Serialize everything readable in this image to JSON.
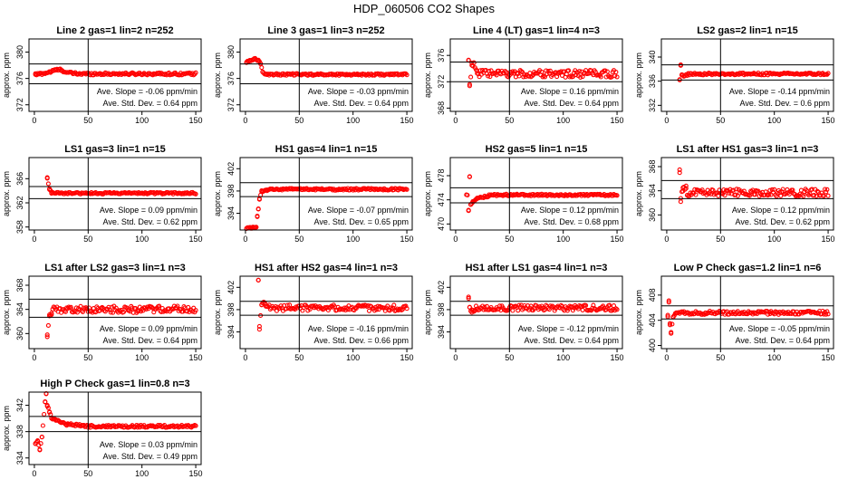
{
  "figure": {
    "title": "HDP_060506  CO2 Shapes"
  },
  "colors": {
    "points": "#ff0000",
    "axes": "#000000",
    "background": "#ffffff"
  },
  "chart_data": [
    {
      "type": "scatter",
      "title": "Line 2 gas=1 lin=2 n=252",
      "ylabel": "approx. ppm",
      "yticks": [
        372,
        376,
        380
      ],
      "ylim": [
        371,
        382
      ],
      "xticks": [
        0,
        50,
        100,
        150
      ],
      "xlim": [
        -5,
        155
      ],
      "vline": 50,
      "hlines": [
        375.2,
        378.2
      ],
      "slope_text": "Ave. Slope = -0.06  ppm/min",
      "std_text": "Ave. Std. Dev. = 0.64  ppm",
      "pattern": {
        "start": 1,
        "end": 150,
        "step": 1,
        "base": 376.7,
        "noise": 0.18,
        "early": [
          [
            1,
            376.6
          ],
          [
            5,
            376.7
          ],
          [
            10,
            376.8
          ],
          [
            15,
            377.0
          ],
          [
            20,
            377.3
          ],
          [
            25,
            377.3
          ],
          [
            30,
            376.9
          ],
          [
            40,
            376.7
          ]
        ]
      }
    },
    {
      "type": "scatter",
      "title": "Line 3 gas=1 lin=3 n=252",
      "ylabel": "approx. ppm",
      "yticks": [
        372,
        376,
        380
      ],
      "ylim": [
        371,
        382
      ],
      "xticks": [
        0,
        50,
        100,
        150
      ],
      "xlim": [
        -5,
        155
      ],
      "vline": 50,
      "hlines": [
        375.2,
        378.2
      ],
      "slope_text": "Ave. Slope = -0.03  ppm/min",
      "std_text": "Ave. Std. Dev. = 0.64  ppm",
      "pattern": {
        "start": 1,
        "end": 150,
        "step": 1,
        "base": 376.6,
        "noise": 0.15,
        "early": [
          [
            1,
            378.5
          ],
          [
            4,
            378.7
          ],
          [
            8,
            379.0
          ],
          [
            12,
            378.7
          ],
          [
            14,
            378.2
          ],
          [
            16,
            377.0
          ],
          [
            19,
            376.7
          ]
        ]
      }
    },
    {
      "type": "scatter",
      "title": "Line 4 (LT) gas=1 lin=4 n=3",
      "ylabel": "approx. ppm",
      "yticks": [
        368,
        372,
        376
      ],
      "ylim": [
        367.5,
        378.5
      ],
      "xticks": [
        0,
        50,
        100,
        150
      ],
      "xlim": [
        -5,
        155
      ],
      "vline": 50,
      "hlines": [
        372.0,
        375.0
      ],
      "slope_text": "Ave. Slope = 0.16  ppm/min",
      "std_text": "Ave. Std. Dev. = 0.64  ppm",
      "pattern": {
        "start": 12,
        "end": 150,
        "step": 1,
        "base": 373.2,
        "noise": 0.55,
        "early": [
          [
            12,
            375.3
          ],
          [
            13,
            371.6
          ],
          [
            15,
            374.5
          ],
          [
            17,
            374.9
          ],
          [
            20,
            373.6
          ]
        ]
      }
    },
    {
      "type": "scatter",
      "title": "LS2 gas=2 lin=1 n=15",
      "ylabel": "approx. ppm",
      "yticks": [
        332,
        336,
        340
      ],
      "ylim": [
        331,
        343
      ],
      "xticks": [
        0,
        50,
        100,
        150
      ],
      "xlim": [
        -5,
        155
      ],
      "vline": 50,
      "hlines": [
        336.2,
        338.7
      ],
      "slope_text": "Ave. Slope = -0.14  ppm/min",
      "std_text": "Ave. Std. Dev. = 0.6  ppm",
      "pattern": {
        "start": 12,
        "end": 150,
        "step": 1,
        "base": 337.2,
        "noise": 0.18,
        "early": [
          [
            12,
            336.2
          ],
          [
            13,
            338.6
          ],
          [
            14,
            337.0
          ],
          [
            16,
            336.8
          ],
          [
            20,
            337.2
          ]
        ]
      }
    },
    {
      "type": "scatter",
      "title": "LS1 gas=3 lin=1 n=15",
      "ylabel": "approx. ppm",
      "yticks": [
        358,
        362,
        366
      ],
      "ylim": [
        357.5,
        369.5
      ],
      "xticks": [
        0,
        50,
        100,
        150
      ],
      "xlim": [
        -5,
        155
      ],
      "vline": 50,
      "hlines": [
        362.7,
        364.7
      ],
      "slope_text": "Ave. Slope = 0.09  ppm/min",
      "std_text": "Ave. Std. Dev. = 0.62  ppm",
      "pattern": {
        "start": 12,
        "end": 150,
        "step": 1,
        "base": 363.6,
        "noise": 0.15,
        "early": [
          [
            12,
            366.2
          ],
          [
            14,
            364.2
          ],
          [
            16,
            363.7
          ],
          [
            20,
            363.6
          ]
        ]
      }
    },
    {
      "type": "scatter",
      "title": "HS1 gas=4 lin=1 n=15",
      "ylabel": "approx. ppm",
      "yticks": [
        394,
        398,
        402
      ],
      "ylim": [
        391,
        404
      ],
      "xticks": [
        0,
        50,
        100,
        150
      ],
      "xlim": [
        -5,
        155
      ],
      "vline": 50,
      "hlines": [
        397.0,
        399.5
      ],
      "slope_text": "Ave. Slope = -0.07  ppm/min",
      "std_text": "Ave. Std. Dev. = 0.65  ppm",
      "pattern": {
        "start": 1,
        "end": 150,
        "step": 1,
        "base": 398.3,
        "noise": 0.18,
        "early": [
          [
            1,
            391.3
          ],
          [
            5,
            391.3
          ],
          [
            8,
            391.4
          ],
          [
            10,
            391.5
          ],
          [
            11,
            393.5
          ],
          [
            12,
            394.8
          ],
          [
            13,
            396.5
          ],
          [
            15,
            397.9
          ],
          [
            20,
            398.2
          ]
        ]
      }
    },
    {
      "type": "scatter",
      "title": "HS2 gas=5 lin=1 n=15",
      "ylabel": "approx. ppm",
      "yticks": [
        470,
        474,
        478
      ],
      "ylim": [
        469,
        481
      ],
      "xticks": [
        0,
        50,
        100,
        150
      ],
      "xlim": [
        -5,
        155
      ],
      "vline": 50,
      "hlines": [
        473.5,
        476.0
      ],
      "slope_text": "Ave. Slope = 0.12  ppm/min",
      "std_text": "Ave. Std. Dev. = 0.68  ppm",
      "pattern": {
        "start": 10,
        "end": 150,
        "step": 1,
        "base": 474.8,
        "noise": 0.15,
        "early": [
          [
            12,
            472.3
          ],
          [
            13,
            477.8
          ],
          [
            14,
            473.2
          ],
          [
            16,
            473.6
          ],
          [
            20,
            474.3
          ],
          [
            30,
            474.6
          ]
        ]
      }
    },
    {
      "type": "scatter",
      "title": "LS1 after HS1 gas=3 lin=1 n=3",
      "ylabel": "approx. ppm",
      "yticks": [
        360,
        364,
        368
      ],
      "ylim": [
        357.5,
        369.5
      ],
      "xticks": [
        0,
        50,
        100,
        150
      ],
      "xlim": [
        -5,
        155
      ],
      "vline": 50,
      "hlines": [
        362.7,
        365.7
      ],
      "slope_text": "Ave. Slope = 0.12  ppm/min",
      "std_text": "Ave. Std. Dev. = 0.62  ppm",
      "pattern": {
        "start": 12,
        "end": 150,
        "step": 1,
        "base": 363.7,
        "noise": 0.6,
        "early": [
          [
            12,
            367.0
          ],
          [
            13,
            362.2
          ],
          [
            15,
            364.5
          ],
          [
            18,
            364.8
          ]
        ]
      }
    },
    {
      "type": "scatter",
      "title": "LS1 after LS2 gas=3 lin=1 n=3",
      "ylabel": "approx. ppm",
      "yticks": [
        360,
        364,
        368
      ],
      "ylim": [
        357.5,
        369.5
      ],
      "xticks": [
        0,
        50,
        100,
        150
      ],
      "xlim": [
        -5,
        155
      ],
      "vline": 50,
      "hlines": [
        362.7,
        365.7
      ],
      "slope_text": "Ave. Slope = 0.09  ppm/min",
      "std_text": "Ave. Std. Dev. = 0.64  ppm",
      "pattern": {
        "start": 12,
        "end": 150,
        "step": 1,
        "base": 364.0,
        "noise": 0.55,
        "early": [
          [
            12,
            359.8
          ],
          [
            14,
            362.9
          ],
          [
            16,
            363.4
          ]
        ]
      }
    },
    {
      "type": "scatter",
      "title": "HS1 after HS2 gas=4 lin=1 n=3",
      "ylabel": "approx. ppm",
      "yticks": [
        394,
        398,
        402
      ],
      "ylim": [
        391,
        404
      ],
      "xticks": [
        0,
        50,
        100,
        150
      ],
      "xlim": [
        -5,
        155
      ],
      "vline": 50,
      "hlines": [
        397.0,
        399.5
      ],
      "slope_text": "Ave. Slope = -0.16  ppm/min",
      "std_text": "Ave. Std. Dev. = 0.66  ppm",
      "pattern": {
        "start": 12,
        "end": 150,
        "step": 1,
        "base": 398.3,
        "noise": 0.55,
        "early": [
          [
            12,
            403.3
          ],
          [
            13,
            395.0
          ],
          [
            15,
            398.9
          ],
          [
            18,
            399.1
          ]
        ]
      }
    },
    {
      "type": "scatter",
      "title": "HS1 after LS1 gas=4 lin=1 n=3",
      "ylabel": "approx. ppm",
      "yticks": [
        394,
        398,
        402
      ],
      "ylim": [
        391,
        404
      ],
      "xticks": [
        0,
        50,
        100,
        150
      ],
      "xlim": [
        -5,
        155
      ],
      "vline": 50,
      "hlines": [
        397.0,
        399.5
      ],
      "slope_text": "Ave. Slope = -0.12  ppm/min",
      "std_text": "Ave. Std. Dev. = 0.64  ppm",
      "pattern": {
        "start": 12,
        "end": 150,
        "step": 1,
        "base": 398.3,
        "noise": 0.5,
        "early": [
          [
            12,
            400.0
          ],
          [
            13,
            398.4
          ],
          [
            15,
            397.5
          ],
          [
            18,
            397.9
          ]
        ]
      }
    },
    {
      "type": "scatter",
      "title": "Low P Check gas=1.2 lin=1 n=6",
      "ylabel": "approx. ppm",
      "yticks": [
        400,
        404,
        408
      ],
      "ylim": [
        399.5,
        411
      ],
      "xticks": [
        0,
        50,
        100,
        150
      ],
      "xlim": [
        -5,
        155
      ],
      "vline": 50,
      "hlines": [
        404.2,
        406.3
      ],
      "slope_text": "Ave. Slope = -0.05  ppm/min",
      "std_text": "Ave. Std. Dev. = 0.64  ppm",
      "pattern": {
        "start": 1,
        "end": 150,
        "step": 1,
        "base": 405.2,
        "noise": 0.28,
        "early": [
          [
            1,
            404.8
          ],
          [
            2,
            407.1
          ],
          [
            3,
            403.5
          ],
          [
            4,
            402.1
          ],
          [
            6,
            404.5
          ],
          [
            9,
            405.2
          ]
        ]
      }
    },
    {
      "type": "scatter",
      "title": "High P Check gas=1 lin=0.8 n=3",
      "ylabel": "approx. ppm",
      "yticks": [
        334,
        338,
        342
      ],
      "ylim": [
        333,
        344
      ],
      "xticks": [
        0,
        50,
        100,
        150
      ],
      "xlim": [
        -5,
        155
      ],
      "vline": 50,
      "hlines": [
        338.0,
        340.3
      ],
      "slope_text": "Ave. Slope = 0.03  ppm/min",
      "std_text": "Ave. Std. Dev. = 0.49  ppm",
      "pattern": {
        "start": 1,
        "end": 150,
        "step": 1,
        "base": 338.8,
        "noise": 0.18,
        "early": [
          [
            1,
            336.2
          ],
          [
            3,
            336.5
          ],
          [
            5,
            335.3
          ],
          [
            7,
            337.2
          ],
          [
            10,
            342.5
          ],
          [
            11,
            343.8
          ],
          [
            12,
            342.0
          ],
          [
            14,
            341.0
          ],
          [
            16,
            340.0
          ],
          [
            20,
            339.7
          ],
          [
            30,
            339.1
          ],
          [
            45,
            338.9
          ]
        ]
      }
    }
  ]
}
